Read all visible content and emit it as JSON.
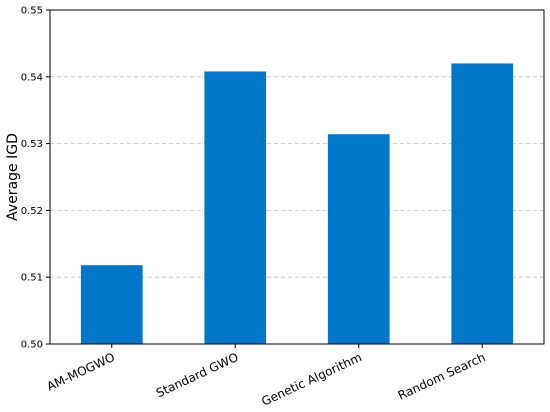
{
  "chart_data": {
    "type": "bar",
    "categories": [
      "AM-MOGWO",
      "Standard GWO",
      "Genetic Algorithm",
      "Random Search"
    ],
    "values": [
      0.5118,
      0.5408,
      0.5314,
      0.542
    ],
    "title": "",
    "xlabel": "",
    "ylabel": "Average IGD",
    "ylim": [
      0.5,
      0.55
    ],
    "yticks": [
      "0.50",
      "0.51",
      "0.52",
      "0.53",
      "0.54",
      "0.55"
    ],
    "grid": "horizontal dashed",
    "legend": "none",
    "bar_color": "#0077c8"
  }
}
